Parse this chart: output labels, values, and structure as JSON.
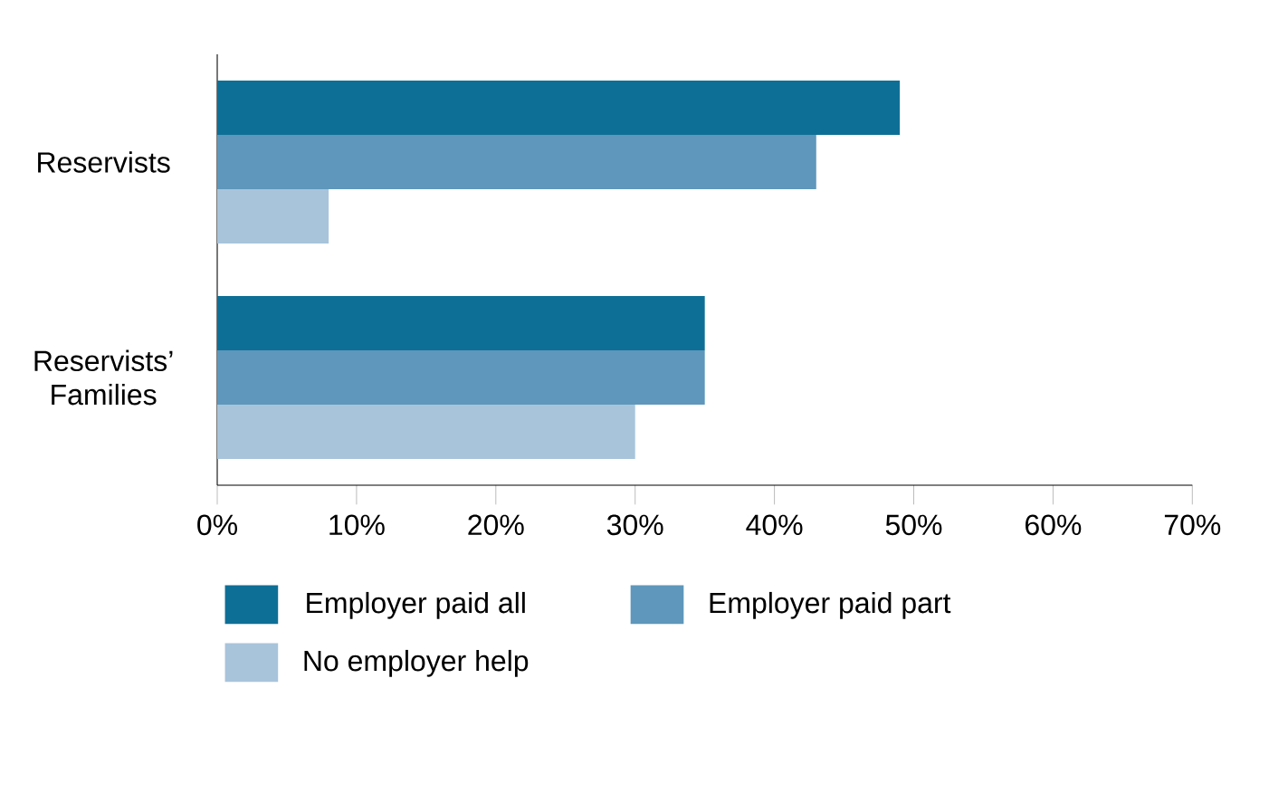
{
  "chart_data": {
    "type": "bar",
    "orientation": "horizontal",
    "categories": [
      "Reservists",
      "Reservists’ Families"
    ],
    "series": [
      {
        "name": "Employer paid all",
        "color": "#0e6f96",
        "values": [
          49,
          35
        ]
      },
      {
        "name": "Employer paid part",
        "color": "#5e97bb",
        "values": [
          43,
          35
        ]
      },
      {
        "name": "No employer help",
        "color": "#a8c4db",
        "values": [
          8,
          30
        ]
      }
    ],
    "xlim": [
      0,
      70
    ],
    "xticks": [
      {
        "value": 0,
        "label": "0%"
      },
      {
        "value": 10,
        "label": "10%"
      },
      {
        "value": 20,
        "label": "20%"
      },
      {
        "value": 30,
        "label": "30%"
      },
      {
        "value": 40,
        "label": "40%"
      },
      {
        "value": 50,
        "label": "50%"
      },
      {
        "value": 60,
        "label": "60%"
      },
      {
        "value": 70,
        "label": "70%"
      }
    ],
    "legend": "bottom",
    "grid": false
  }
}
